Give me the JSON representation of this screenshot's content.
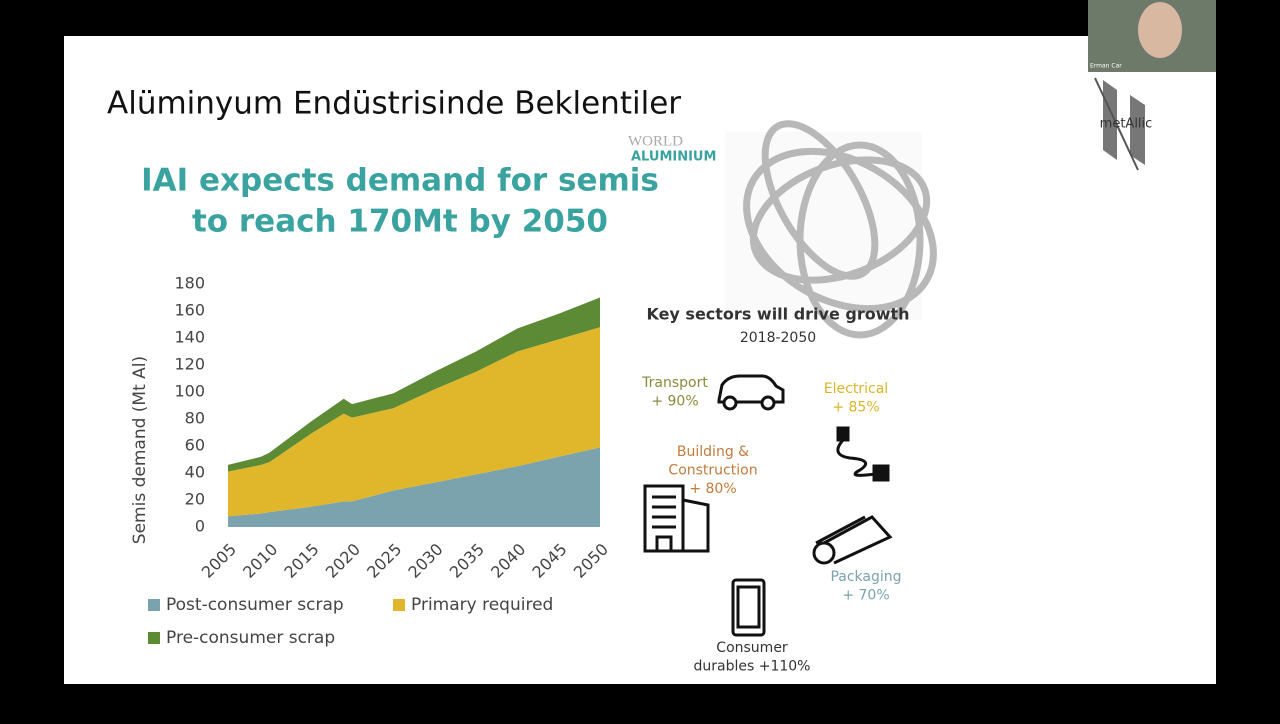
{
  "slide": {
    "title": "Alüminyum Endüstrisinde Beklentiler"
  },
  "webcam": {
    "name": "Erman Car"
  },
  "logo": {
    "text": "metAllic"
  },
  "brand": {
    "line1": "WORLD",
    "line2": "ALUMINIUM"
  },
  "chart_data": {
    "type": "area",
    "stacked": true,
    "title": [
      "IAI expects demand for semis",
      "to reach 170Mt by 2050"
    ],
    "y_label": "Semis demand (Mt Al)",
    "x": [
      2005,
      2009,
      2010,
      2015,
      2019,
      2020,
      2025,
      2030,
      2035,
      2040,
      2045,
      2050
    ],
    "series": [
      {
        "name": "Post-consumer scrap",
        "color": "#7ba3ad",
        "values": [
          8,
          10,
          11,
          15,
          19,
          19,
          27,
          33,
          39,
          45,
          52,
          59
        ]
      },
      {
        "name": "Primary required",
        "color": "#e0b62a",
        "values": [
          33,
          36,
          37,
          54,
          65,
          62,
          61,
          69,
          76,
          85,
          87,
          89
        ]
      },
      {
        "name": "Pre-consumer scrap",
        "color": "#5d8a35",
        "values": [
          5,
          6,
          7,
          9,
          11,
          10,
          11,
          13,
          15,
          17,
          19,
          22
        ]
      }
    ],
    "xlim": [
      2005,
      2050
    ],
    "xticks": [
      2005,
      2010,
      2015,
      2020,
      2025,
      2030,
      2035,
      2040,
      2045,
      2050
    ],
    "ylim": [
      0,
      180
    ],
    "yticks": [
      0,
      20,
      40,
      60,
      80,
      100,
      120,
      140,
      160,
      180
    ],
    "grid": false,
    "legend": "bottom"
  },
  "sectors": {
    "title": "Key sectors will drive growth",
    "period": "2018-2050",
    "items": [
      {
        "lines": [
          "Transport",
          "+ 90%"
        ],
        "color": "#8b8a3c"
      },
      {
        "lines": [
          "Electrical",
          "+ 85%"
        ],
        "color": "#d9b52a"
      },
      {
        "lines": [
          "Building &",
          "Construction",
          "+ 80%"
        ],
        "color": "#c27b3c"
      },
      {
        "lines": [
          "Packaging",
          "+ 70%"
        ],
        "color": "#7aa3ad"
      },
      {
        "lines": [
          "Consumer",
          "durables +110%"
        ],
        "color": "#333333"
      }
    ]
  }
}
